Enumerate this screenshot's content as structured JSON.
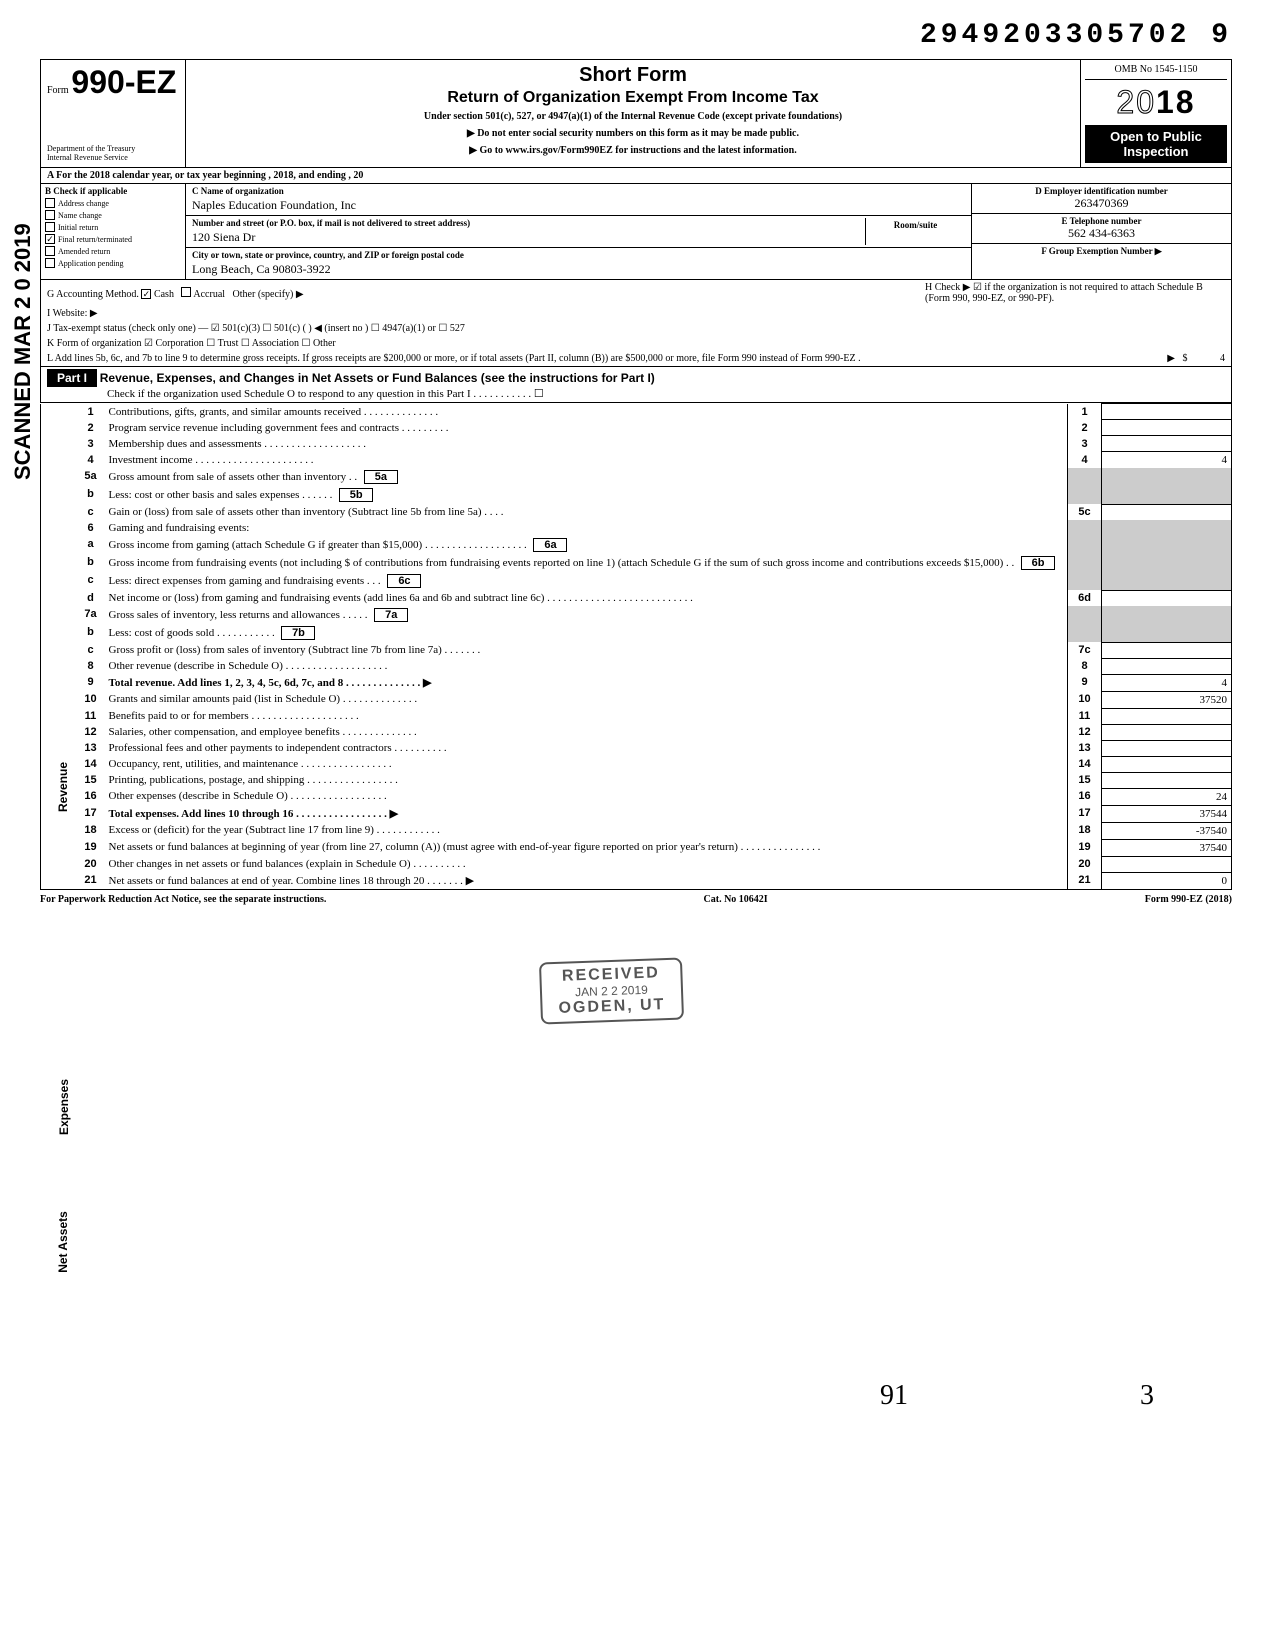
{
  "top_number": "2949203305702 9",
  "scanned_date": "SCANNED MAR 2 0 2019",
  "header": {
    "form_prefix": "Form",
    "form_number": "990-EZ",
    "title": "Short Form",
    "subtitle": "Return of Organization Exempt From Income Tax",
    "undertext": "Under section 501(c), 527, or 4947(a)(1) of the Internal Revenue Code (except private foundations)",
    "instruction1": "▶ Do not enter social security numbers on this form as it may be made public.",
    "instruction2": "▶ Go to www.irs.gov/Form990EZ for instructions and the latest information.",
    "dept": "Department of the Treasury\nInternal Revenue Service",
    "omb": "OMB No 1545-1150",
    "year": "2018",
    "open_public": "Open to Public Inspection"
  },
  "row_a": "A  For the 2018 calendar year, or tax year beginning                                                              , 2018, and ending                                                  , 20",
  "section_b": {
    "label": "B  Check if applicable",
    "items": [
      {
        "checked": false,
        "label": "Address change"
      },
      {
        "checked": false,
        "label": "Name change"
      },
      {
        "checked": false,
        "label": "Initial return"
      },
      {
        "checked": true,
        "label": "Final return/terminated"
      },
      {
        "checked": false,
        "label": "Amended return"
      },
      {
        "checked": false,
        "label": "Application pending"
      }
    ]
  },
  "section_c": {
    "name_label": "C  Name of organization",
    "name_value": "Naples Education Foundation, Inc",
    "street_label": "Number and street (or P.O. box, if mail is not delivered to street address)",
    "street_value": "120 Siena Dr",
    "room_label": "Room/suite",
    "city_label": "City or town, state or province, country, and ZIP or foreign postal code",
    "city_value": "Long Beach, Ca  90803-3922"
  },
  "section_d": {
    "label": "D Employer identification number",
    "value": "263470369"
  },
  "section_e": {
    "label": "E  Telephone number",
    "value": "562 434-6363"
  },
  "section_f": {
    "label": "F  Group Exemption Number ▶"
  },
  "meta": {
    "g": {
      "label": "G  Accounting Method.",
      "cash_checked": true,
      "options": [
        "Cash",
        "Accrual",
        "Other (specify) ▶"
      ]
    },
    "h": "H  Check ▶ ☑ if the organization is not required to attach Schedule B (Form 990, 990-EZ, or 990-PF).",
    "i": "I   Website: ▶",
    "j": "J  Tax-exempt status (check only one) —  ☑ 501(c)(3)   ☐ 501(c) (        ) ◀ (insert no ) ☐ 4947(a)(1) or   ☐ 527",
    "k": "K  Form of organization    ☑ Corporation    ☐ Trust            ☐ Association      ☐ Other",
    "l": "L  Add lines 5b, 6c, and 7b to line 9 to determine gross receipts. If gross receipts are $200,000 or more, or if total assets (Part II, column (B)) are $500,000 or more, file Form 990 instead of Form 990-EZ .",
    "l_value": "4"
  },
  "part1": {
    "label": "Part I",
    "title": "Revenue, Expenses, and Changes in Net Assets or Fund Balances (see the instructions for Part I)",
    "sub": "Check if the organization used Schedule O to respond to any question in this Part I  .   .   .   .   .   .   .   .   .   .   .   ☐"
  },
  "lines": [
    {
      "n": "1",
      "desc": "Contributions, gifts, grants, and similar amounts received .   .   .   .   .   .   .   .   .   .   .   .   .   .",
      "box": "1",
      "val": ""
    },
    {
      "n": "2",
      "desc": "Program service revenue including government fees and contracts        .   .   .   .   .   .   .   .   .",
      "box": "2",
      "val": ""
    },
    {
      "n": "3",
      "desc": "Membership dues and assessments .   .   .   .   .   .   .            .   .   .   .   .   .   .   .   .   .   .   .",
      "box": "3",
      "val": ""
    },
    {
      "n": "4",
      "desc": "Investment income     .   .   .   .   .   .   .   .   .   .   .              .   .   .   .   .   .   .   .   .   .   .",
      "box": "4",
      "val": "4"
    },
    {
      "n": "5a",
      "desc": "Gross amount from sale of assets other than inventory    .          .",
      "inner": "5a"
    },
    {
      "n": "b",
      "desc": "Less: cost or other basis and sales expenses .   .   .   .   .   .",
      "inner": "5b"
    },
    {
      "n": "c",
      "desc": "Gain or (loss) from sale of assets other than inventory (Subtract line 5b from line 5a)  .   .   .   .",
      "box": "5c",
      "val": ""
    },
    {
      "n": "6",
      "desc": "Gaming and fundraising events:"
    },
    {
      "n": "a",
      "desc": "Gross income from gaming (attach Schedule G if greater than $15,000) .   .   .   .   .   .   .   .   .   .   .   .   .   .   .   .   .   .   .",
      "inner": "6a"
    },
    {
      "n": "b",
      "desc": "Gross income from fundraising events (not including  $                     of contributions from fundraising events reported on line 1) (attach Schedule G if the sum of such gross income and contributions exceeds $15,000) .   .",
      "inner": "6b"
    },
    {
      "n": "c",
      "desc": "Less: direct expenses from gaming and fundraising events    .   .   .",
      "inner": "6c"
    },
    {
      "n": "d",
      "desc": "Net income or (loss) from gaming and fundraising events (add lines 6a and 6b and subtract line 6c)      .   .   .   .   .   .   .   .   .   .   .   .   .   .   .   .   .   .   .   .   .   .   .   .   .   .   .",
      "box": "6d",
      "val": ""
    },
    {
      "n": "7a",
      "desc": "Gross sales of inventory, less returns and allowances  .   .   .   .   .",
      "inner": "7a"
    },
    {
      "n": "b",
      "desc": "Less: cost of goods sold          .   .   .   .   .   .   .   .   .   .   .",
      "inner": "7b"
    },
    {
      "n": "c",
      "desc": "Gross profit or (loss) from sales of inventory (Subtract line 7b from line 7a)   .   .   .   .   .   .   .",
      "box": "7c",
      "val": ""
    },
    {
      "n": "8",
      "desc": "Other revenue (describe in Schedule O) .   .   .   .   .   .   .   .   .   .   .   .   .   .   .   .   .   .   .",
      "box": "8",
      "val": ""
    },
    {
      "n": "9",
      "desc": "Total revenue. Add lines 1, 2, 3, 4, 5c, 6d, 7c, and 8   .   .   .   .   .   .   .   .   .   .   .   .   .   . ▶",
      "box": "9",
      "val": "4",
      "bold": true
    },
    {
      "n": "10",
      "desc": "Grants and similar amounts paid (list in Schedule O)    .   .   .   .   .   .   .   .   .   .   .   .   .   .",
      "box": "10",
      "val": "37520"
    },
    {
      "n": "11",
      "desc": "Benefits paid to or for members    .   .   .   .   .   .   .   .   .   .   .   .   .   .   .   .   .   .   .   .",
      "box": "11",
      "val": ""
    },
    {
      "n": "12",
      "desc": "Salaries, other compensation, and employee benefits    .   .   .   .   .   .   .   .   .   .   .   .   .   .",
      "box": "12",
      "val": ""
    },
    {
      "n": "13",
      "desc": "Professional fees and other payments to independent contractors   .   .   .   .   .   .   .   .   .   .",
      "box": "13",
      "val": ""
    },
    {
      "n": "14",
      "desc": "Occupancy, rent, utilities, and maintenance    .   .   .   .   .   .   .   .   .   .   .   .   .   .   .   .   .",
      "box": "14",
      "val": ""
    },
    {
      "n": "15",
      "desc": "Printing, publications, postage, and shipping .   .   .   .   .   .   .   .   .   .   .   .   .   .   .   .   .",
      "box": "15",
      "val": ""
    },
    {
      "n": "16",
      "desc": "Other expenses (describe in Schedule O)  .   .   .   .   .   .   .   .   .   .   .   .   .   .   .   .   .   .",
      "box": "16",
      "val": "24"
    },
    {
      "n": "17",
      "desc": "Total expenses. Add lines 10 through 16   .   .   .   .   .   .   .   .   .   .   .   .   .   .   .   .   . ▶",
      "box": "17",
      "val": "37544",
      "bold": true
    },
    {
      "n": "18",
      "desc": "Excess or (deficit) for the year (Subtract line 17 from line 9)    .   .   .   .   .   .   .   .   .   .   .   .",
      "box": "18",
      "val": "-37540"
    },
    {
      "n": "19",
      "desc": "Net assets or fund balances at beginning of year (from line 27, column (A)) (must agree with end-of-year figure reported on prior year's return)    .   .   .   .   .   .   .   .   .   .   .   .   .   .   .",
      "box": "19",
      "val": "37540"
    },
    {
      "n": "20",
      "desc": "Other changes in net assets or fund balances (explain in Schedule O) .   .   .   .   .   .   .   .   .   .",
      "box": "20",
      "val": ""
    },
    {
      "n": "21",
      "desc": "Net assets or fund balances at end of year. Combine lines 18 through 20    .   .   .   .   .   .   . ▶",
      "box": "21",
      "val": "0"
    }
  ],
  "stamp": {
    "received": "RECEIVED",
    "date": "JAN 2 2 2019",
    "location": "OGDEN, UT"
  },
  "footer": {
    "left": "For Paperwork Reduction Act Notice, see the separate instructions.",
    "center": "Cat. No 10642I",
    "right": "Form 990-EZ (2018)"
  },
  "handwritten": {
    "hw1": "91",
    "hw2": "3"
  },
  "side_labels": {
    "revenue": "Revenue",
    "expenses": "Expenses",
    "net_assets": "Net Assets"
  }
}
